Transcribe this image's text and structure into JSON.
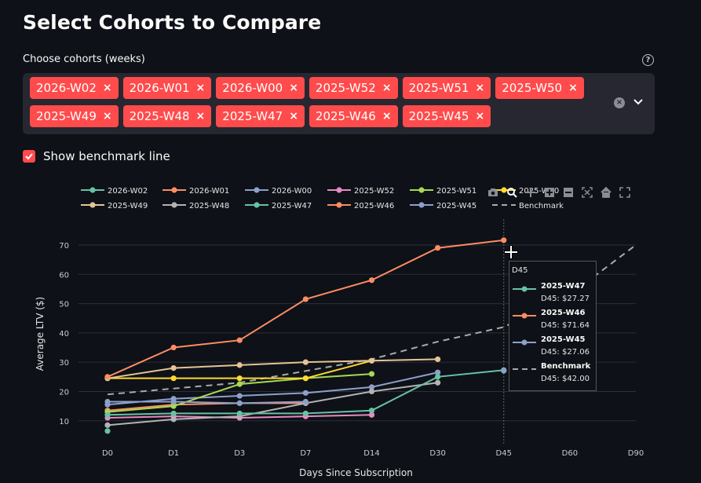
{
  "page": {
    "title": "Select Cohorts to Compare"
  },
  "multiselect": {
    "label": "Choose cohorts (weeks)",
    "help": "?",
    "clear_icon": "×",
    "tags": [
      "2026-W02",
      "2026-W01",
      "2026-W00",
      "2025-W52",
      "2025-W51",
      "2025-W50",
      "2025-W49",
      "2025-W48",
      "2025-W47",
      "2025-W46",
      "2025-W45"
    ]
  },
  "checkbox": {
    "label": "Show benchmark line",
    "checked": true
  },
  "chart_data": {
    "type": "line",
    "title": "",
    "xlabel": "Days Since Subscription",
    "ylabel": "Average LTV ($)",
    "categories": [
      "D0",
      "D1",
      "D3",
      "D7",
      "D14",
      "D30",
      "D45",
      "D60",
      "D90"
    ],
    "y_ticks": [
      10,
      20,
      30,
      40,
      50,
      60,
      70
    ],
    "ylim": [
      3.5,
      77.5
    ],
    "series": [
      {
        "name": "2026-W02",
        "color": "#66c2a5",
        "values": [
          6.5,
          null,
          null,
          null,
          null,
          null,
          null,
          null,
          null
        ]
      },
      {
        "name": "2026-W01",
        "color": "#fc8d62",
        "values": [
          13.5,
          15.5,
          16.0,
          16.0,
          null,
          null,
          null,
          null,
          null
        ]
      },
      {
        "name": "2026-W00",
        "color": "#8da0cb",
        "values": [
          15.5,
          17.5,
          18.5,
          19.5,
          21.5,
          26.5,
          null,
          null,
          null
        ]
      },
      {
        "name": "2025-W52",
        "color": "#e78ac3",
        "values": [
          11.0,
          11.5,
          11.0,
          11.5,
          12.0,
          null,
          null,
          null,
          null
        ]
      },
      {
        "name": "2025-W51",
        "color": "#a6d854",
        "values": [
          13.0,
          15.0,
          22.5,
          24.5,
          26.0,
          null,
          null,
          null,
          null
        ]
      },
      {
        "name": "2025-W50",
        "color": "#ffd92f",
        "values": [
          24.5,
          24.5,
          24.5,
          24.5,
          30.5,
          null,
          null,
          null,
          null
        ]
      },
      {
        "name": "2025-W49",
        "color": "#e5c494",
        "values": [
          24.5,
          28.0,
          29.0,
          30.0,
          30.5,
          31.0,
          null,
          null,
          null
        ]
      },
      {
        "name": "2025-W48",
        "color": "#b3b3b3",
        "values": [
          8.5,
          10.5,
          11.5,
          16.0,
          20.0,
          23.0,
          null,
          null,
          null
        ]
      },
      {
        "name": "2025-W47",
        "color": "#66c2a5",
        "values": [
          12.0,
          12.5,
          12.5,
          12.5,
          13.5,
          25.0,
          27.27,
          null,
          null
        ]
      },
      {
        "name": "2025-W46",
        "color": "#fc8d62",
        "values": [
          25.0,
          35.0,
          37.5,
          51.5,
          58.0,
          69.0,
          71.64,
          null,
          null
        ]
      },
      {
        "name": "2025-W45",
        "color": "#8da0cb",
        "values": [
          16.5,
          16.5,
          16.0,
          16.5,
          null,
          null,
          27.06,
          null,
          null
        ]
      }
    ],
    "benchmark": {
      "name": "Benchmark",
      "color": "#aaaaaa",
      "values": [
        19.0,
        21.0,
        23.0,
        27.0,
        31.0,
        37.0,
        42.0,
        53.0,
        70.0
      ]
    },
    "tooltip": {
      "header": "D45",
      "entries": [
        {
          "name": "2025-W47",
          "value": "D45: $27.27",
          "color": "#66c2a5",
          "dashed": false
        },
        {
          "name": "2025-W46",
          "value": "D45: $71.64",
          "color": "#fc8d62",
          "dashed": false
        },
        {
          "name": "2025-W45",
          "value": "D45: $27.06",
          "color": "#8da0cb",
          "dashed": false
        },
        {
          "name": "Benchmark",
          "value": "D45: $42.00",
          "color": "#aaaaaa",
          "dashed": true
        }
      ]
    }
  },
  "toolbar": {
    "icons": [
      "camera-icon",
      "zoom-icon",
      "pan-icon",
      "zoom-in-icon",
      "zoom-out-icon",
      "autoscale-icon",
      "reset-axes-icon",
      "fullscreen-icon"
    ]
  }
}
